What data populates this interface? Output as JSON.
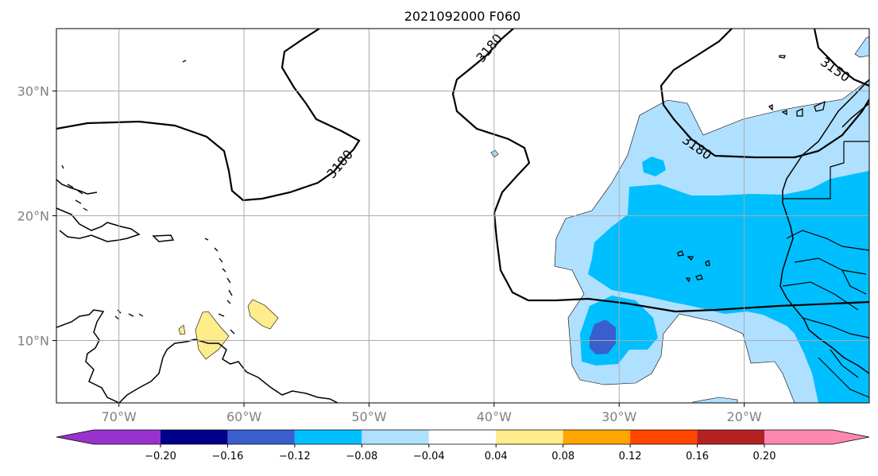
{
  "title": "2021092000 F060",
  "map": {
    "lon_range": [
      -75,
      -10
    ],
    "lat_range": [
      5,
      35
    ],
    "lon_ticks": [
      {
        "value": -70,
        "label": "70°W"
      },
      {
        "value": -60,
        "label": "60°W"
      },
      {
        "value": -50,
        "label": "50°W"
      },
      {
        "value": -40,
        "label": "40°W"
      },
      {
        "value": -30,
        "label": "30°W"
      },
      {
        "value": -20,
        "label": "20°W"
      }
    ],
    "lat_ticks": [
      {
        "value": 30,
        "label": "30°N"
      },
      {
        "value": 20,
        "label": "20°N"
      },
      {
        "value": 10,
        "label": "10°N"
      }
    ],
    "gridlines": true,
    "contour_labels": [
      "3180",
      "3180",
      "3180",
      "3150"
    ]
  },
  "colorbar": {
    "colors": {
      "lt_m020": "#9932cc",
      "m020_m016": "#00008b",
      "m016_m012": "#3a5fcd",
      "m012_m008": "#00bfff",
      "m008_m004": "#b0e0ff",
      "m004_004": "#ffffff",
      "004_008": "#ffec8b",
      "008_012": "#ffa500",
      "012_016": "#ff4500",
      "016_020": "#b22222",
      "gt_020": "#ff88b0"
    },
    "tick_labels": [
      "−0.20",
      "−0.16",
      "−0.12",
      "−0.08",
      "−0.04",
      "0.04",
      "0.08",
      "0.12",
      "0.16",
      "0.20"
    ]
  }
}
